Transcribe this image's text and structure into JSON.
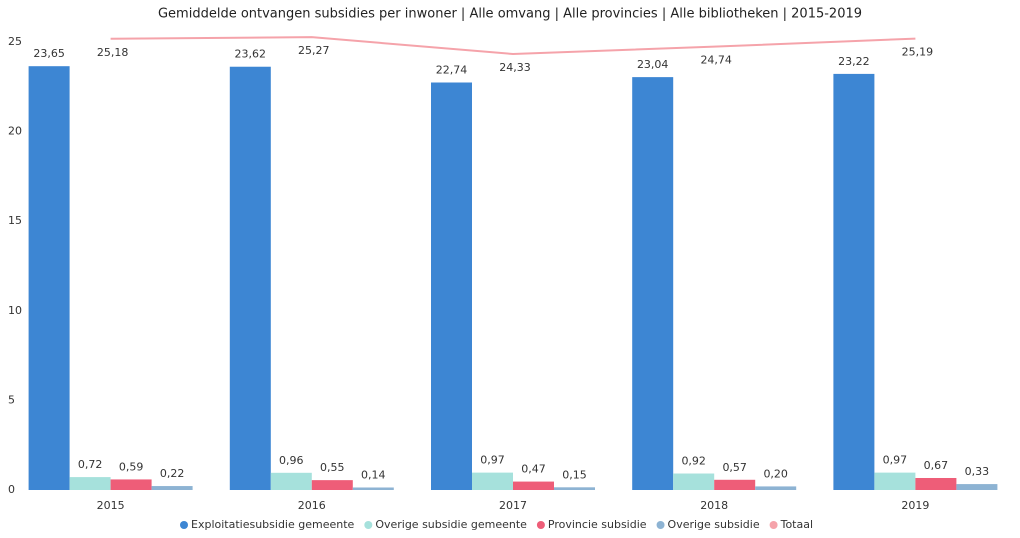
{
  "chart_data": {
    "type": "bar",
    "title": "Gemiddelde ontvangen subsidies per inwoner | Alle omvang | Alle provincies | Alle bibliotheken | 2015-2019",
    "categories": [
      "2015",
      "2016",
      "2017",
      "2018",
      "2019"
    ],
    "ylim": [
      0,
      25
    ],
    "yticks": [
      0,
      5,
      10,
      15,
      20,
      25
    ],
    "grid": false,
    "series": [
      {
        "name": "Exploitatiesubsidie gemeente",
        "color": "#3d86d3",
        "values": [
          23.65,
          23.62,
          22.74,
          23.04,
          23.22
        ],
        "value_labels": [
          "23,65",
          "23,62",
          "22,74",
          "23,04",
          "23,22"
        ]
      },
      {
        "name": "Overige subsidie gemeente",
        "color": "#a6e1dc",
        "values": [
          0.72,
          0.96,
          0.97,
          0.92,
          0.97
        ],
        "value_labels": [
          "0,72",
          "0,96",
          "0,97",
          "0,92",
          "0,97"
        ]
      },
      {
        "name": "Provincie subsidie",
        "color": "#ee5d78",
        "values": [
          0.59,
          0.55,
          0.47,
          0.57,
          0.67
        ],
        "value_labels": [
          "0,59",
          "0,55",
          "0,47",
          "0,57",
          "0,67"
        ]
      },
      {
        "name": "Overige subsidie",
        "color": "#8db3d3",
        "values": [
          0.22,
          0.14,
          0.15,
          0.2,
          0.33
        ],
        "value_labels": [
          "0,22",
          "0,14",
          "0,15",
          "0,20",
          "0,33"
        ]
      },
      {
        "name": "Totaal",
        "type": "line",
        "color": "#f5a3aa",
        "values": [
          25.18,
          25.27,
          24.33,
          24.74,
          25.19
        ],
        "value_labels": [
          "25,18",
          "25,27",
          "24,33",
          "24,74",
          "25,19"
        ]
      }
    ]
  }
}
